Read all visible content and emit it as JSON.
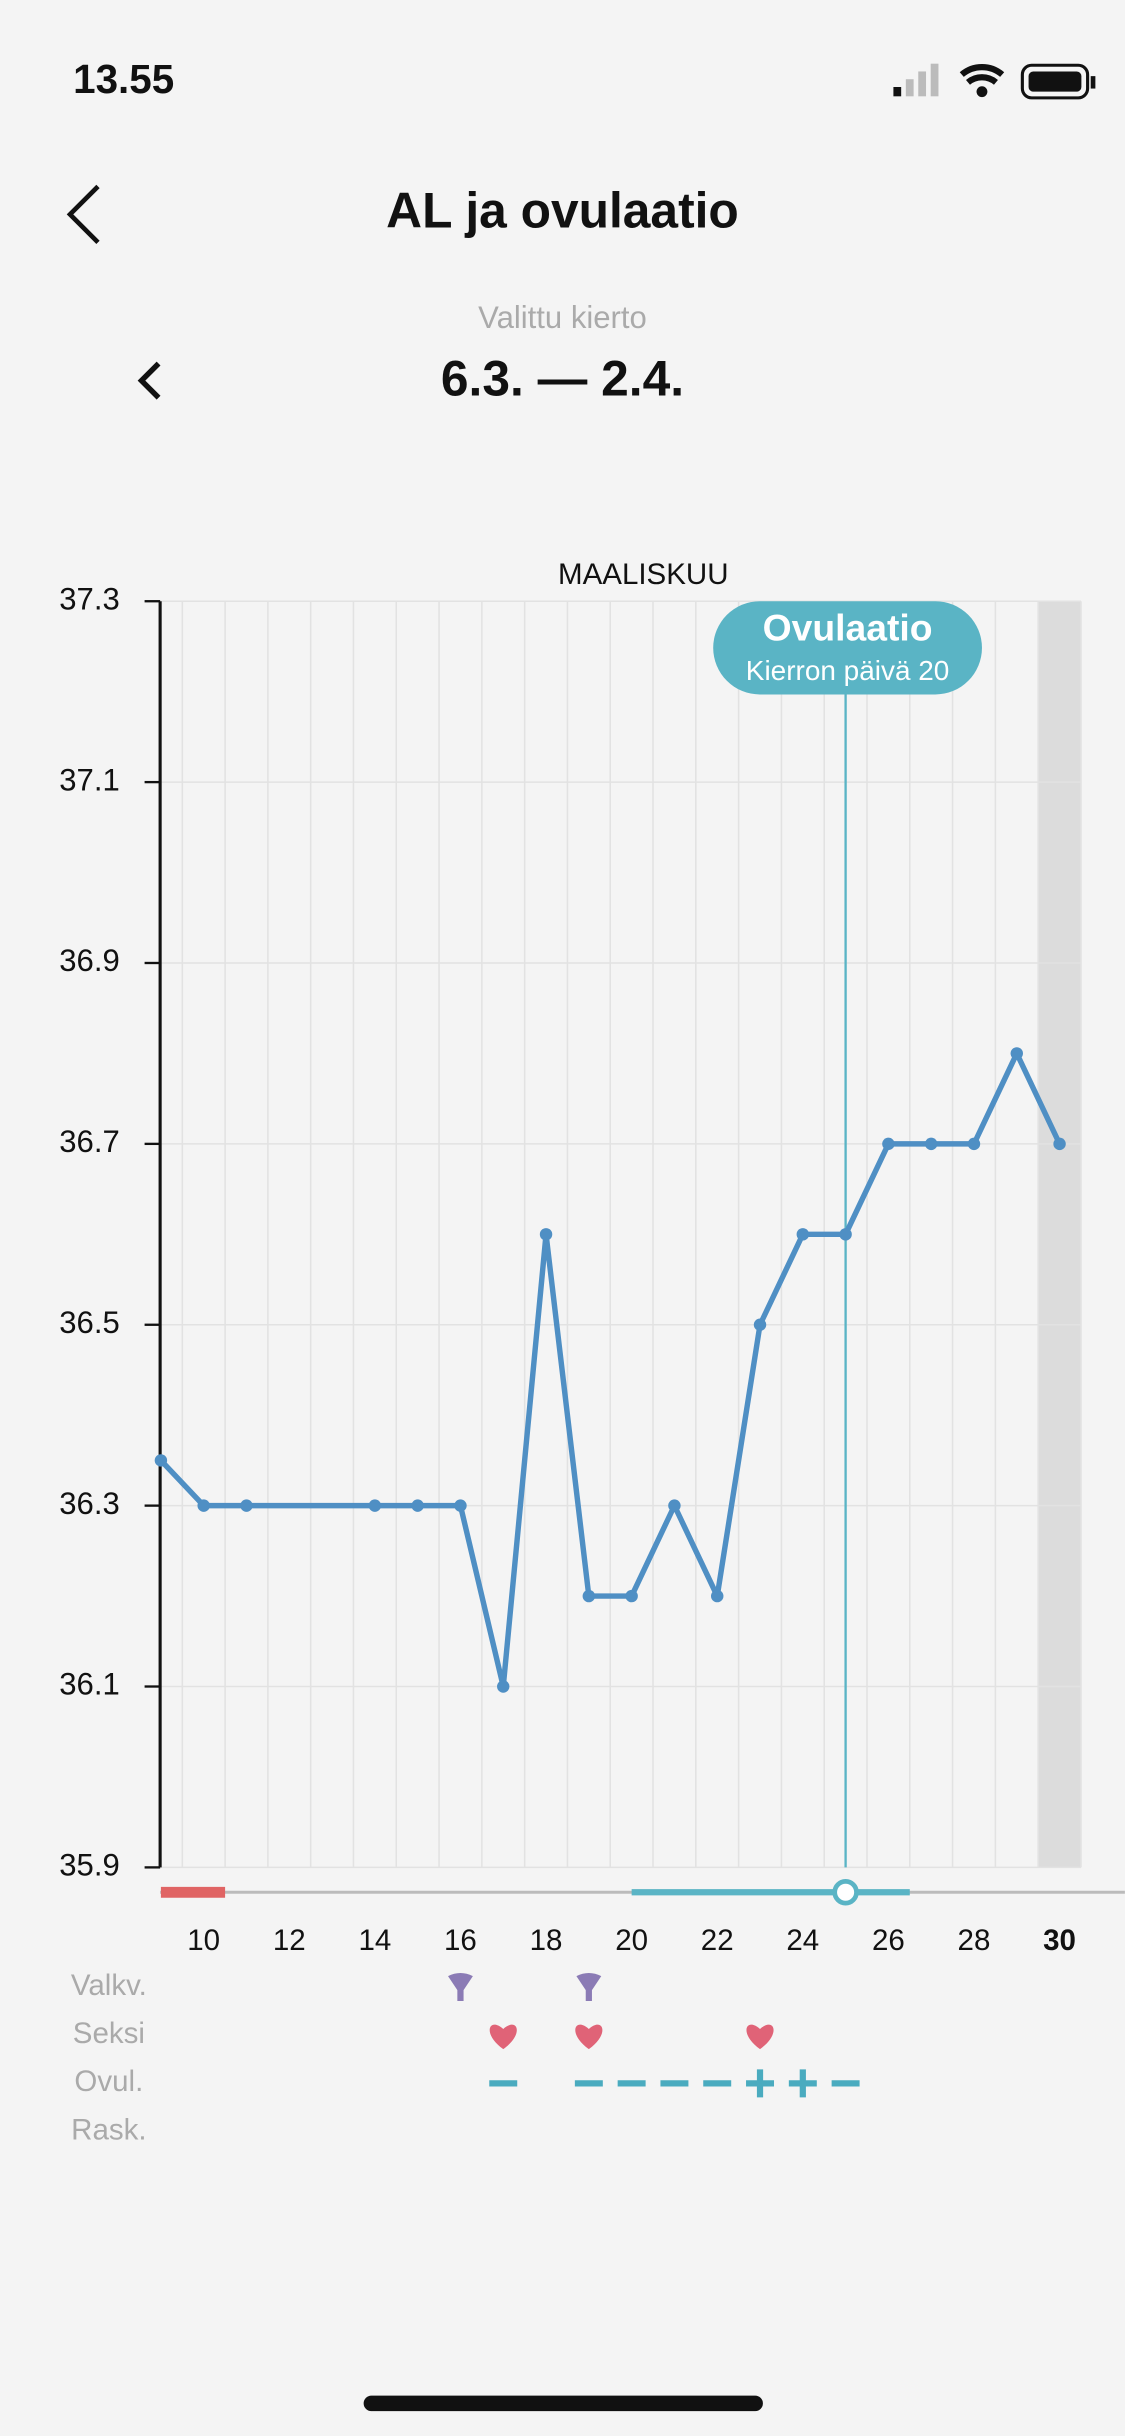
{
  "status_bar": {
    "time": "13.55"
  },
  "header": {
    "title": "AL ja ovulaatio",
    "cycle_label": "Valittu kierto",
    "cycle_range": "6.3. — 2.4."
  },
  "chart_data": {
    "type": "line",
    "title": "MAALISKUU",
    "x": [
      9,
      10,
      11,
      14,
      15,
      16,
      17,
      18,
      19,
      20,
      21,
      22,
      23,
      24,
      25,
      26,
      27,
      28,
      29,
      30
    ],
    "series": [
      {
        "color": "#4f8fc4",
        "values": [
          36.35,
          36.3,
          36.3,
          36.3,
          36.3,
          36.3,
          36.1,
          36.6,
          36.2,
          36.2,
          36.3,
          36.2,
          36.5,
          36.6,
          36.6,
          36.7,
          36.7,
          36.7,
          36.8,
          36.7
        ]
      }
    ],
    "xlim": [
      9,
      31
    ],
    "ylim": [
      35.9,
      37.3
    ],
    "xticks": [
      10,
      12,
      14,
      16,
      18,
      20,
      22,
      24,
      26,
      28,
      30
    ],
    "yticks": [
      35.9,
      36.1,
      36.3,
      36.5,
      36.7,
      36.9,
      37.1,
      37.3
    ],
    "grid": true,
    "today": 30,
    "ovulation": {
      "day": 25,
      "label": "Ovulaatio",
      "sublabel": "Kierron päivä 20",
      "color": "#5ab4c5"
    },
    "period": [
      9,
      10.5
    ],
    "fertile": [
      20,
      26.5
    ]
  },
  "rows": [
    {
      "label": "Valkv.",
      "days": [
        16,
        19
      ]
    },
    {
      "label": "Seksi",
      "days": [
        17,
        19,
        23
      ]
    },
    {
      "label": "Ovul.",
      "negative": [
        17,
        19,
        20,
        21,
        22,
        25
      ],
      "positive": [
        23,
        24
      ]
    },
    {
      "label": "Rask."
    }
  ]
}
